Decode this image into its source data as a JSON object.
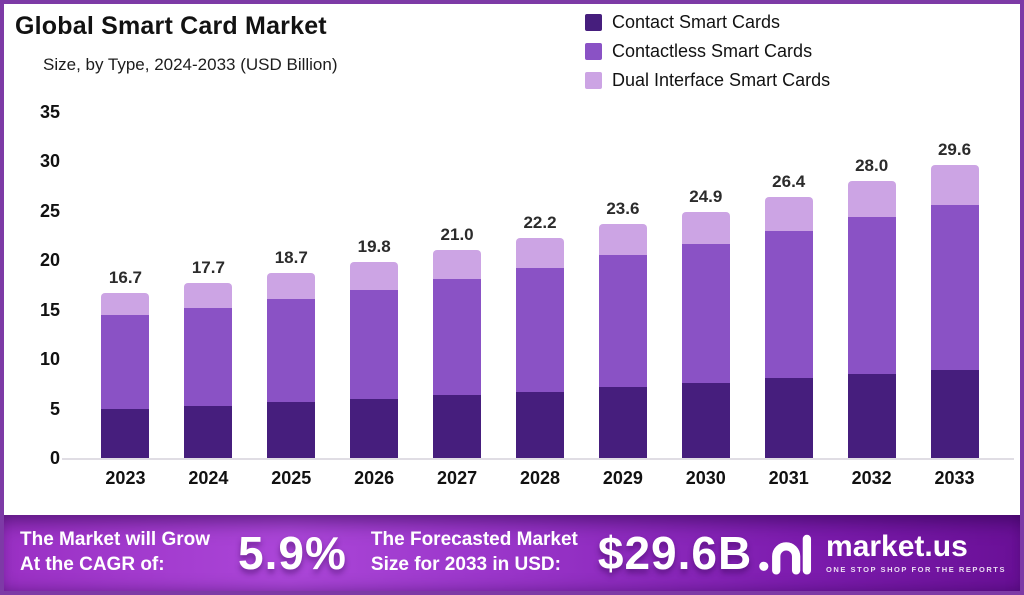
{
  "header": {
    "title": "Global Smart Card Market",
    "subtitle": "Size, by Type, 2024-2033 (USD Billion)"
  },
  "chart_data": {
    "type": "bar",
    "stacked": true,
    "title": "Global Smart Card Market",
    "subtitle": "Size, by Type, 2024-2033 (USD Billion)",
    "categories": [
      "2023",
      "2024",
      "2025",
      "2026",
      "2027",
      "2028",
      "2029",
      "2030",
      "2031",
      "2032",
      "2033"
    ],
    "series": [
      {
        "name": "Contact Smart Cards",
        "color": "#461E7D",
        "values": [
          5.0,
          5.3,
          5.7,
          6.0,
          6.4,
          6.7,
          7.2,
          7.6,
          8.1,
          8.5,
          8.9
        ]
      },
      {
        "name": "Contactless Smart Cards",
        "color": "#8A52C5",
        "values": [
          9.4,
          9.9,
          10.4,
          11.0,
          11.7,
          12.5,
          13.3,
          14.0,
          14.8,
          15.8,
          16.7
        ]
      },
      {
        "name": "Dual Interface Smart Cards",
        "color": "#CCA4E4",
        "values": [
          2.3,
          2.5,
          2.6,
          2.8,
          2.9,
          3.0,
          3.1,
          3.3,
          3.5,
          3.7,
          4.0
        ]
      }
    ],
    "totals": [
      "16.7",
      "17.7",
      "18.7",
      "19.8",
      "21.0",
      "22.2",
      "23.6",
      "24.9",
      "26.4",
      "28.0",
      "29.6"
    ],
    "yticks": [
      0,
      5,
      10,
      15,
      20,
      25,
      30,
      35
    ],
    "ylim": [
      0,
      35
    ],
    "grid": false,
    "legend_position": "top-right",
    "xlabel": "",
    "ylabel": "USD Billion"
  },
  "footer": {
    "cagr_label_line1": "The Market will Grow",
    "cagr_label_line2": "At the CAGR of:",
    "cagr_value": "5.9%",
    "forecast_label_line1": "The Forecasted Market",
    "forecast_label_line2": "Size for 2033 in USD:",
    "forecast_value": "$29.6B",
    "brand": {
      "name": "market.us",
      "tagline": "ONE STOP SHOP FOR THE REPORTS"
    }
  },
  "colors": {
    "frame_border": "#7d3aa6",
    "contact": "#461E7D",
    "contactless": "#8A52C5",
    "dual_interface": "#CCA4E4",
    "footer_gradient_left": "#9a30c4",
    "footer_gradient_right": "#6a1097",
    "axis_line": "#e0dde4",
    "text": "#121212"
  }
}
